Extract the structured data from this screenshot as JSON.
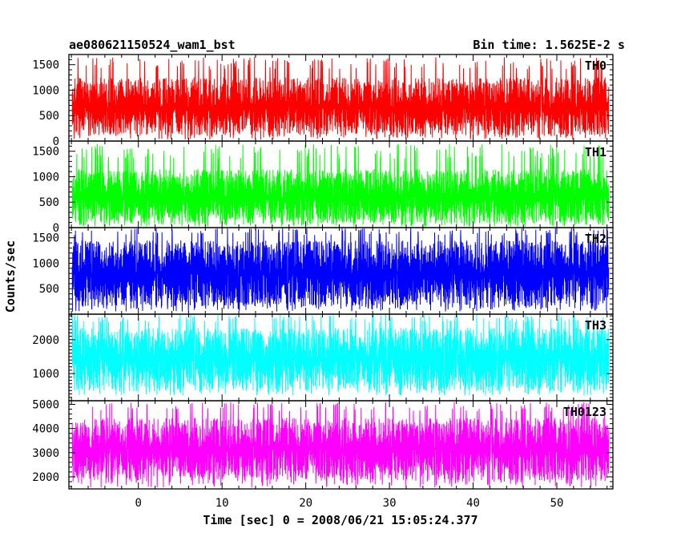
{
  "header": {
    "title": "ae080621150524_wam1_bst",
    "bin_time": "Bin time: 1.5625E-2 s"
  },
  "chart_data": {
    "type": "line",
    "title": "ae080621150524_wam1_bst",
    "xlabel": "Time [sec] 0 = 2008/06/21 15:05:24.377",
    "ylabel": "Counts/sec",
    "xlim": [
      -8.3,
      56.7
    ],
    "x_ticks": [
      0,
      10,
      20,
      30,
      40,
      50
    ],
    "x_tick_labels": [
      "0",
      "10",
      "20",
      "30",
      "40",
      "50"
    ],
    "data_x_range": [
      -7.9,
      56.2
    ],
    "bin_time_s": 0.015625,
    "panels": [
      {
        "series_name": "TH0",
        "color": "#ff0000",
        "ylim": [
          0,
          1700
        ],
        "y_ticks": [
          0,
          500,
          1000,
          1500
        ],
        "y_tick_labels": [
          "0",
          "500",
          "1000",
          "1500"
        ],
        "typical_range": [
          120,
          1250
        ],
        "peak_range": [
          30,
          1650
        ],
        "mean": 650
      },
      {
        "series_name": "TH1",
        "color": "#00ff00",
        "ylim": [
          0,
          1700
        ],
        "y_ticks": [
          0,
          500,
          1000,
          1500
        ],
        "y_tick_labels": [
          "0",
          "500",
          "1000",
          "1500"
        ],
        "typical_range": [
          80,
          1150
        ],
        "peak_range": [
          20,
          1650
        ],
        "mean": 600
      },
      {
        "series_name": "TH2",
        "color": "#0000ff",
        "ylim": [
          0,
          1700
        ],
        "y_ticks": [
          500,
          1000,
          1500
        ],
        "y_tick_labels": [
          "500",
          "1000",
          "1500"
        ],
        "typical_range": [
          150,
          1450
        ],
        "peak_range": [
          50,
          1700
        ],
        "mean": 800
      },
      {
        "series_name": "TH3",
        "color": "#00ffff",
        "ylim": [
          200,
          2750
        ],
        "y_ticks": [
          1000,
          2000
        ],
        "y_tick_labels": [
          "1000",
          "2000"
        ],
        "typical_range": [
          500,
          2350
        ],
        "peak_range": [
          350,
          2750
        ],
        "mean": 1450
      },
      {
        "series_name": "TH0123",
        "color": "#ff00ff",
        "ylim": [
          1500,
          5150
        ],
        "y_ticks": [
          2000,
          3000,
          4000,
          5000
        ],
        "y_tick_labels": [
          "2000",
          "3000",
          "4000",
          "5000"
        ],
        "typical_range": [
          1850,
          4450
        ],
        "peak_range": [
          1550,
          5100
        ],
        "mean": 3150
      }
    ]
  }
}
